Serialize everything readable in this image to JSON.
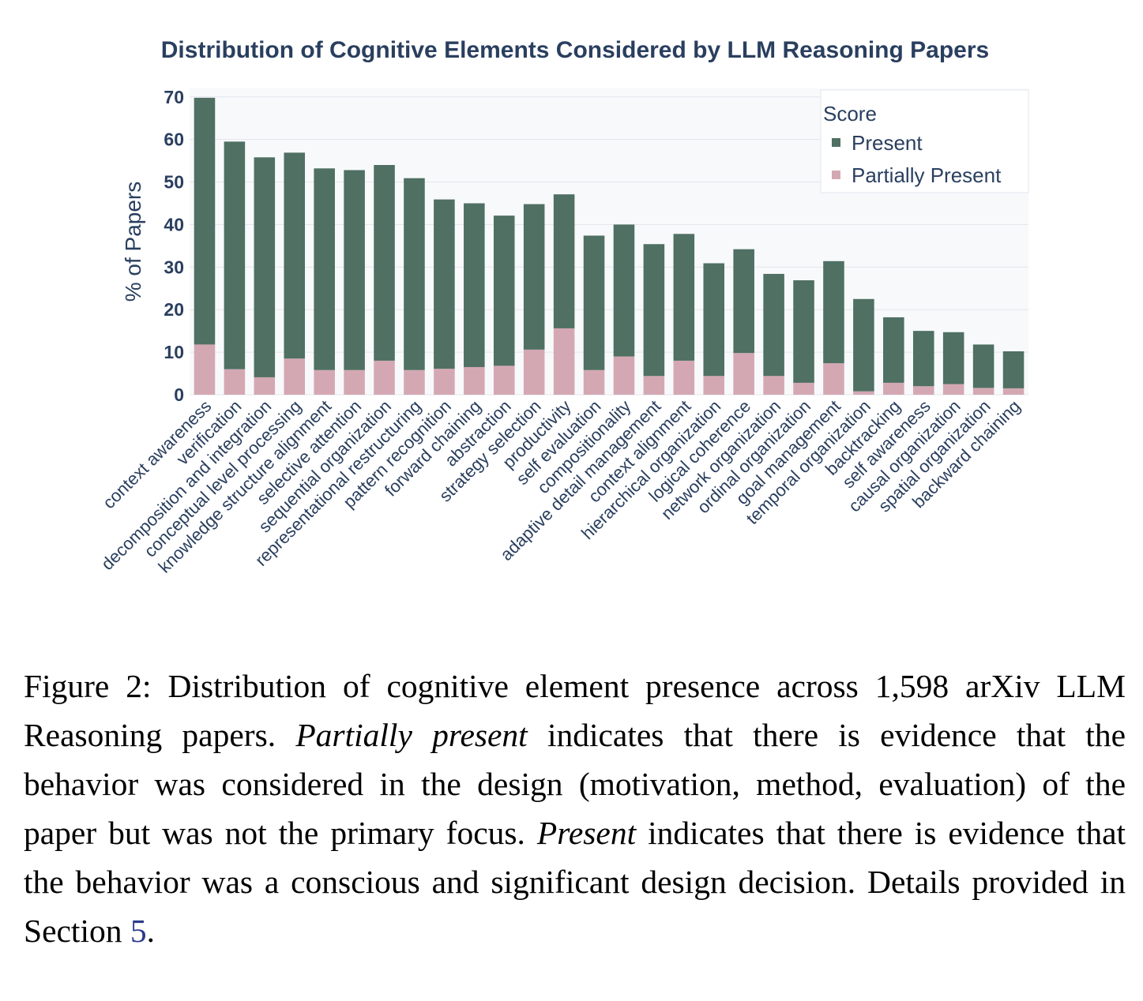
{
  "chart_data": {
    "type": "bar",
    "stacked": true,
    "title": "Distribution of Cognitive Elements Considered by LLM Reasoning Papers",
    "xlabel": "",
    "ylabel": "% of Papers",
    "ylim": [
      0,
      72
    ],
    "yticks": [
      0,
      10,
      20,
      30,
      40,
      50,
      60,
      70
    ],
    "grid": true,
    "legend": {
      "title": "Score",
      "placement": "top-right"
    },
    "categories": [
      "context awareness",
      "verification",
      "decomposition and integration",
      "conceptual level processing",
      "knowledge structure alignment",
      "selective attention",
      "sequential organization",
      "representational restructuring",
      "pattern recognition",
      "forward chaining",
      "abstraction",
      "strategy selection",
      "productivity",
      "self evaluation",
      "compositionality",
      "adaptive detail management",
      "context alignment",
      "hierarchical organization",
      "logical coherence",
      "network organization",
      "ordinal organization",
      "goal management",
      "temporal organization",
      "backtracking",
      "self awareness",
      "causal organization",
      "spatial organization",
      "backward chaining"
    ],
    "series": [
      {
        "name": "Present",
        "color": "#4f7063",
        "values": [
          58.0,
          53.5,
          51.7,
          48.4,
          47.4,
          47.0,
          46.0,
          45.1,
          39.8,
          38.5,
          35.3,
          34.2,
          31.5,
          31.6,
          31.0,
          31.0,
          29.8,
          26.5,
          24.4,
          24.0,
          24.1,
          24.0,
          21.7,
          15.4,
          13.0,
          12.2,
          10.2,
          8.7
        ]
      },
      {
        "name": "Partially Present",
        "color": "#d4a8b3",
        "values": [
          11.8,
          6.0,
          4.1,
          8.5,
          5.8,
          5.8,
          8.0,
          5.8,
          6.1,
          6.5,
          6.8,
          10.6,
          15.6,
          5.8,
          9.0,
          4.4,
          8.0,
          4.4,
          9.8,
          4.4,
          2.8,
          7.4,
          0.8,
          2.8,
          2.0,
          2.5,
          1.6,
          1.5
        ]
      }
    ]
  },
  "caption": {
    "label": "Figure 2:",
    "text1": "Distribution of cognitive element presence across 1,598 arXiv LLM Reasoning papers.",
    "term1": "Partially present",
    "text2": "indicates that there is evidence that the behavior was considered in the design (motivation, method, evaluation) of the paper but was not the primary focus.",
    "term2": "Present",
    "text3": "indicates that there is evidence that the behavior was a conscious and significant design decision. Details provided in Section",
    "section_ref": "5",
    "end": "."
  }
}
